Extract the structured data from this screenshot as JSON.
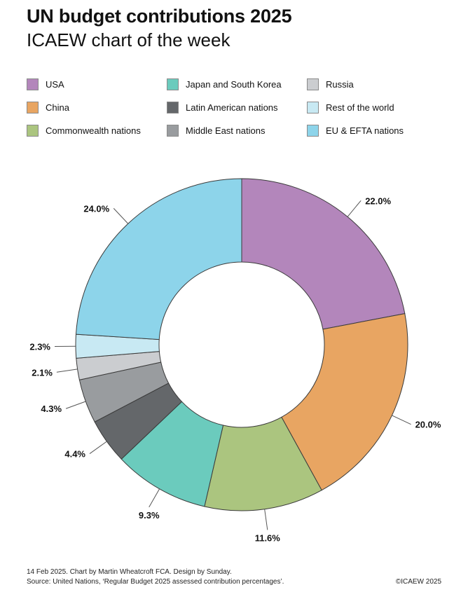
{
  "header": {
    "title": "UN budget contributions 2025",
    "subtitle": "ICAEW chart of the week"
  },
  "footer": {
    "line1": "14 Feb 2025.   Chart by Martin Wheatcroft FCA. Design by Sunday.",
    "line2": "Source: United Nations, ‘Regular Budget 2025 assessed contribution percentages’.",
    "copyright": "©ICAEW 2025"
  },
  "chart_data": {
    "type": "pie",
    "donut": true,
    "title": "UN budget contributions 2025",
    "legend_position": "top",
    "series": [
      {
        "name": "USA",
        "value": 22.0,
        "label": "22.0%",
        "color": "#b386bb"
      },
      {
        "name": "China",
        "value": 20.0,
        "label": "20.0%",
        "color": "#e8a562"
      },
      {
        "name": "Commonwealth nations",
        "value": 11.6,
        "label": "11.6%",
        "color": "#abc57f"
      },
      {
        "name": "Japan and South Korea",
        "value": 9.3,
        "label": "9.3%",
        "color": "#6bcbbd"
      },
      {
        "name": "Latin American nations",
        "value": 4.4,
        "label": "4.4%",
        "color": "#64676a"
      },
      {
        "name": "Middle East nations",
        "value": 4.3,
        "label": "4.3%",
        "color": "#999c9f"
      },
      {
        "name": "Russia",
        "value": 2.1,
        "label": "2.1%",
        "color": "#cbcdd0"
      },
      {
        "name": "Rest of the world",
        "value": 2.3,
        "label": "2.3%",
        "color": "#c8e9f3"
      },
      {
        "name": "EU & EFTA nations",
        "value": 24.0,
        "label": "24.0%",
        "color": "#8dd4ea"
      }
    ],
    "legend": [
      [
        "USA",
        "Japan and South Korea",
        "Russia"
      ],
      [
        "China",
        "Latin American nations",
        "Rest of the world"
      ],
      [
        "Commonwealth nations",
        "Middle East nations",
        "EU & EFTA nations"
      ]
    ]
  }
}
